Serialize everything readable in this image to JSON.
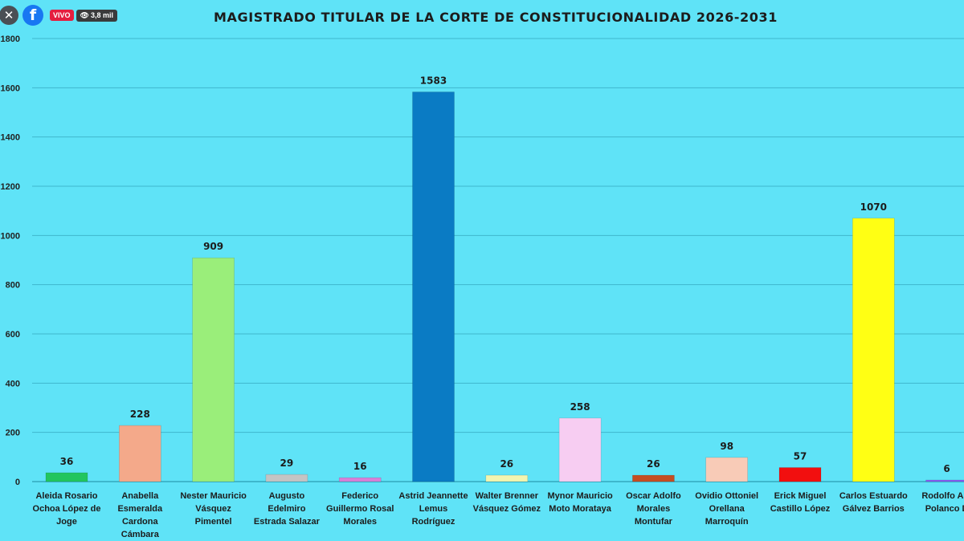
{
  "overlay": {
    "close_icon": "close-icon",
    "logo_icon": "facebook-logo-icon",
    "live_label": "VIVO",
    "viewer_count": "3,8 mil",
    "viewer_icon": "eye-icon"
  },
  "chart_data": {
    "type": "bar",
    "title": "MAGISTRADO TITULAR DE LA CORTE DE CONSTITUCIONALIDAD 2026-2031",
    "xlabel": "",
    "ylabel": "",
    "ylim": [
      0,
      1800
    ],
    "yticks": [
      0,
      200,
      400,
      600,
      800,
      1000,
      1200,
      1400,
      1600,
      1800
    ],
    "grid": true,
    "categories": [
      [
        "Aleida Rosario",
        "Ochoa López de",
        "Joge"
      ],
      [
        "Anabella",
        "Esmeralda",
        "Cardona",
        "Cámbara"
      ],
      [
        "Nester Mauricio",
        "Vásquez",
        "Pimentel"
      ],
      [
        "Augusto",
        "Edelmiro",
        "Estrada Salazar"
      ],
      [
        "Federico",
        "Guillermo Rosal",
        "Morales"
      ],
      [
        "Astrid Jeannette",
        "Lemus",
        "Rodríguez"
      ],
      [
        "Walter Brenner",
        "Vásquez Gómez"
      ],
      [
        "Mynor Mauricio",
        "Moto Morataya"
      ],
      [
        "Oscar Adolfo",
        "Morales",
        "Montufar"
      ],
      [
        "Ovidio Ottoniel",
        "Orellana",
        "Marroquín"
      ],
      [
        "Erick Miguel",
        "Castillo López"
      ],
      [
        "Carlos Estuardo",
        "Gálvez Barrios"
      ],
      [
        "Rodolfo Ant",
        "Polanco D"
      ]
    ],
    "values": [
      36,
      228,
      909,
      29,
      16,
      1583,
      26,
      258,
      26,
      98,
      57,
      1070,
      6
    ],
    "colors": [
      "#22c55e",
      "#f4a98a",
      "#9aee7a",
      "#c4c4c4",
      "#d880d8",
      "#0a7bc4",
      "#f2f5b0",
      "#f7cdf2",
      "#c44d22",
      "#f8cbb7",
      "#f20f0f",
      "#ffff14",
      "#8b5cf6"
    ]
  }
}
